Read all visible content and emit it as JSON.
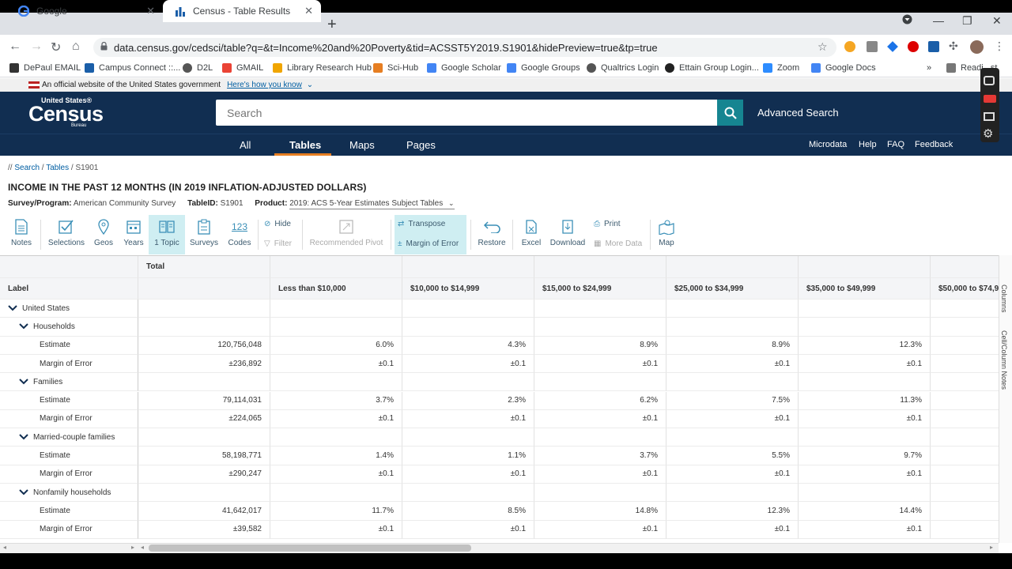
{
  "browser": {
    "tabs": [
      {
        "title": "Google",
        "active": false
      },
      {
        "title": "Census - Table Results",
        "active": true
      }
    ],
    "url": "data.census.gov/cedsci/table?q=&t=Income%20and%20Poverty&tid=ACSST5Y2019.S1901&hidePreview=true&tp=true",
    "bookmarks": [
      "DePaul EMAIL",
      "Campus Connect ::...",
      "D2L",
      "GMAIL",
      "Library Research Hub",
      "Sci-Hub",
      "Google Scholar",
      "Google Groups",
      "Qualtrics Login",
      "Ettain Group Login...",
      "Zoom",
      "Google Docs",
      "Readi...st"
    ]
  },
  "gov_banner": {
    "text": "An official website of the United States government",
    "link": "Here's how you know"
  },
  "header": {
    "logo_top": "United States®",
    "logo_main": "Census",
    "logo_sub": "Bureau",
    "search_placeholder": "Search",
    "advanced_search": "Advanced Search"
  },
  "nav": {
    "items": [
      "All",
      "Tables",
      "Maps",
      "Pages"
    ],
    "active": "Tables",
    "right": [
      "Microdata",
      "Help",
      "FAQ",
      "Feedback"
    ]
  },
  "breadcrumb": {
    "prefix": "// ",
    "search": "Search",
    "tables": "Tables",
    "current": "S1901"
  },
  "table": {
    "title": "INCOME IN THE PAST 12 MONTHS (IN 2019 INFLATION-ADJUSTED DOLLARS)",
    "survey_label": "Survey/Program:",
    "survey_value": "American Community Survey",
    "tableid_label": "TableID:",
    "tableid_value": "S1901",
    "product_label": "Product:",
    "product_value": "2019: ACS 5-Year Estimates Subject Tables"
  },
  "toolbar": {
    "notes": "Notes",
    "selections": "Selections",
    "geos": "Geos",
    "years": "Years",
    "topic": "1 Topic",
    "surveys": "Surveys",
    "codes": "Codes",
    "codes_icon_text": "123",
    "hide": "Hide",
    "filter": "Filter",
    "pivot": "Recommended Pivot",
    "transpose": "Transpose",
    "moe": "Margin of Error",
    "restore": "Restore",
    "excel": "Excel",
    "download": "Download",
    "print": "Print",
    "more_data": "More Data",
    "map": "Map"
  },
  "grid": {
    "label_header": "Label",
    "group_header": "Total",
    "columns": [
      "Less than $10,000",
      "$10,000 to $14,999",
      "$15,000 to $24,999",
      "$25,000 to $34,999",
      "$35,000 to $49,999",
      "$50,000 to $74,9"
    ],
    "rows": [
      {
        "label": "United States",
        "level": 0,
        "caret": true,
        "total": "",
        "values": [
          "",
          "",
          "",
          "",
          "",
          ""
        ]
      },
      {
        "label": "Households",
        "level": 1,
        "caret": true,
        "total": "",
        "values": [
          "",
          "",
          "",
          "",
          "",
          ""
        ]
      },
      {
        "label": "Estimate",
        "level": 2,
        "caret": false,
        "total": "120,756,048",
        "values": [
          "6.0%",
          "4.3%",
          "8.9%",
          "8.9%",
          "12.3%",
          ""
        ]
      },
      {
        "label": "Margin of Error",
        "level": 2,
        "caret": false,
        "total": "±236,892",
        "values": [
          "±0.1",
          "±0.1",
          "±0.1",
          "±0.1",
          "±0.1",
          ""
        ]
      },
      {
        "label": "Families",
        "level": 1,
        "caret": true,
        "total": "",
        "values": [
          "",
          "",
          "",
          "",
          "",
          ""
        ]
      },
      {
        "label": "Estimate",
        "level": 2,
        "caret": false,
        "total": "79,114,031",
        "values": [
          "3.7%",
          "2.3%",
          "6.2%",
          "7.5%",
          "11.3%",
          ""
        ]
      },
      {
        "label": "Margin of Error",
        "level": 2,
        "caret": false,
        "total": "±224,065",
        "values": [
          "±0.1",
          "±0.1",
          "±0.1",
          "±0.1",
          "±0.1",
          ""
        ]
      },
      {
        "label": "Married-couple families",
        "level": 1,
        "caret": true,
        "total": "",
        "values": [
          "",
          "",
          "",
          "",
          "",
          ""
        ]
      },
      {
        "label": "Estimate",
        "level": 2,
        "caret": false,
        "total": "58,198,771",
        "values": [
          "1.4%",
          "1.1%",
          "3.7%",
          "5.5%",
          "9.7%",
          ""
        ]
      },
      {
        "label": "Margin of Error",
        "level": 2,
        "caret": false,
        "total": "±290,247",
        "values": [
          "±0.1",
          "±0.1",
          "±0.1",
          "±0.1",
          "±0.1",
          ""
        ]
      },
      {
        "label": "Nonfamily households",
        "level": 1,
        "caret": true,
        "total": "",
        "values": [
          "",
          "",
          "",
          "",
          "",
          ""
        ]
      },
      {
        "label": "Estimate",
        "level": 2,
        "caret": false,
        "total": "41,642,017",
        "values": [
          "11.7%",
          "8.5%",
          "14.8%",
          "12.3%",
          "14.4%",
          ""
        ]
      },
      {
        "label": "Margin of Error",
        "level": 2,
        "caret": false,
        "total": "±39,582",
        "values": [
          "±0.1",
          "±0.1",
          "±0.1",
          "±0.1",
          "±0.1",
          ""
        ]
      }
    ]
  },
  "right_rail": {
    "columns": "Columns",
    "notes": "Cell/Column Notes"
  },
  "colors": {
    "header_navy": "#112e51",
    "accent_teal": "#168591",
    "tab_underline": "#e67e22",
    "selected_tool": "#cfeef2"
  }
}
